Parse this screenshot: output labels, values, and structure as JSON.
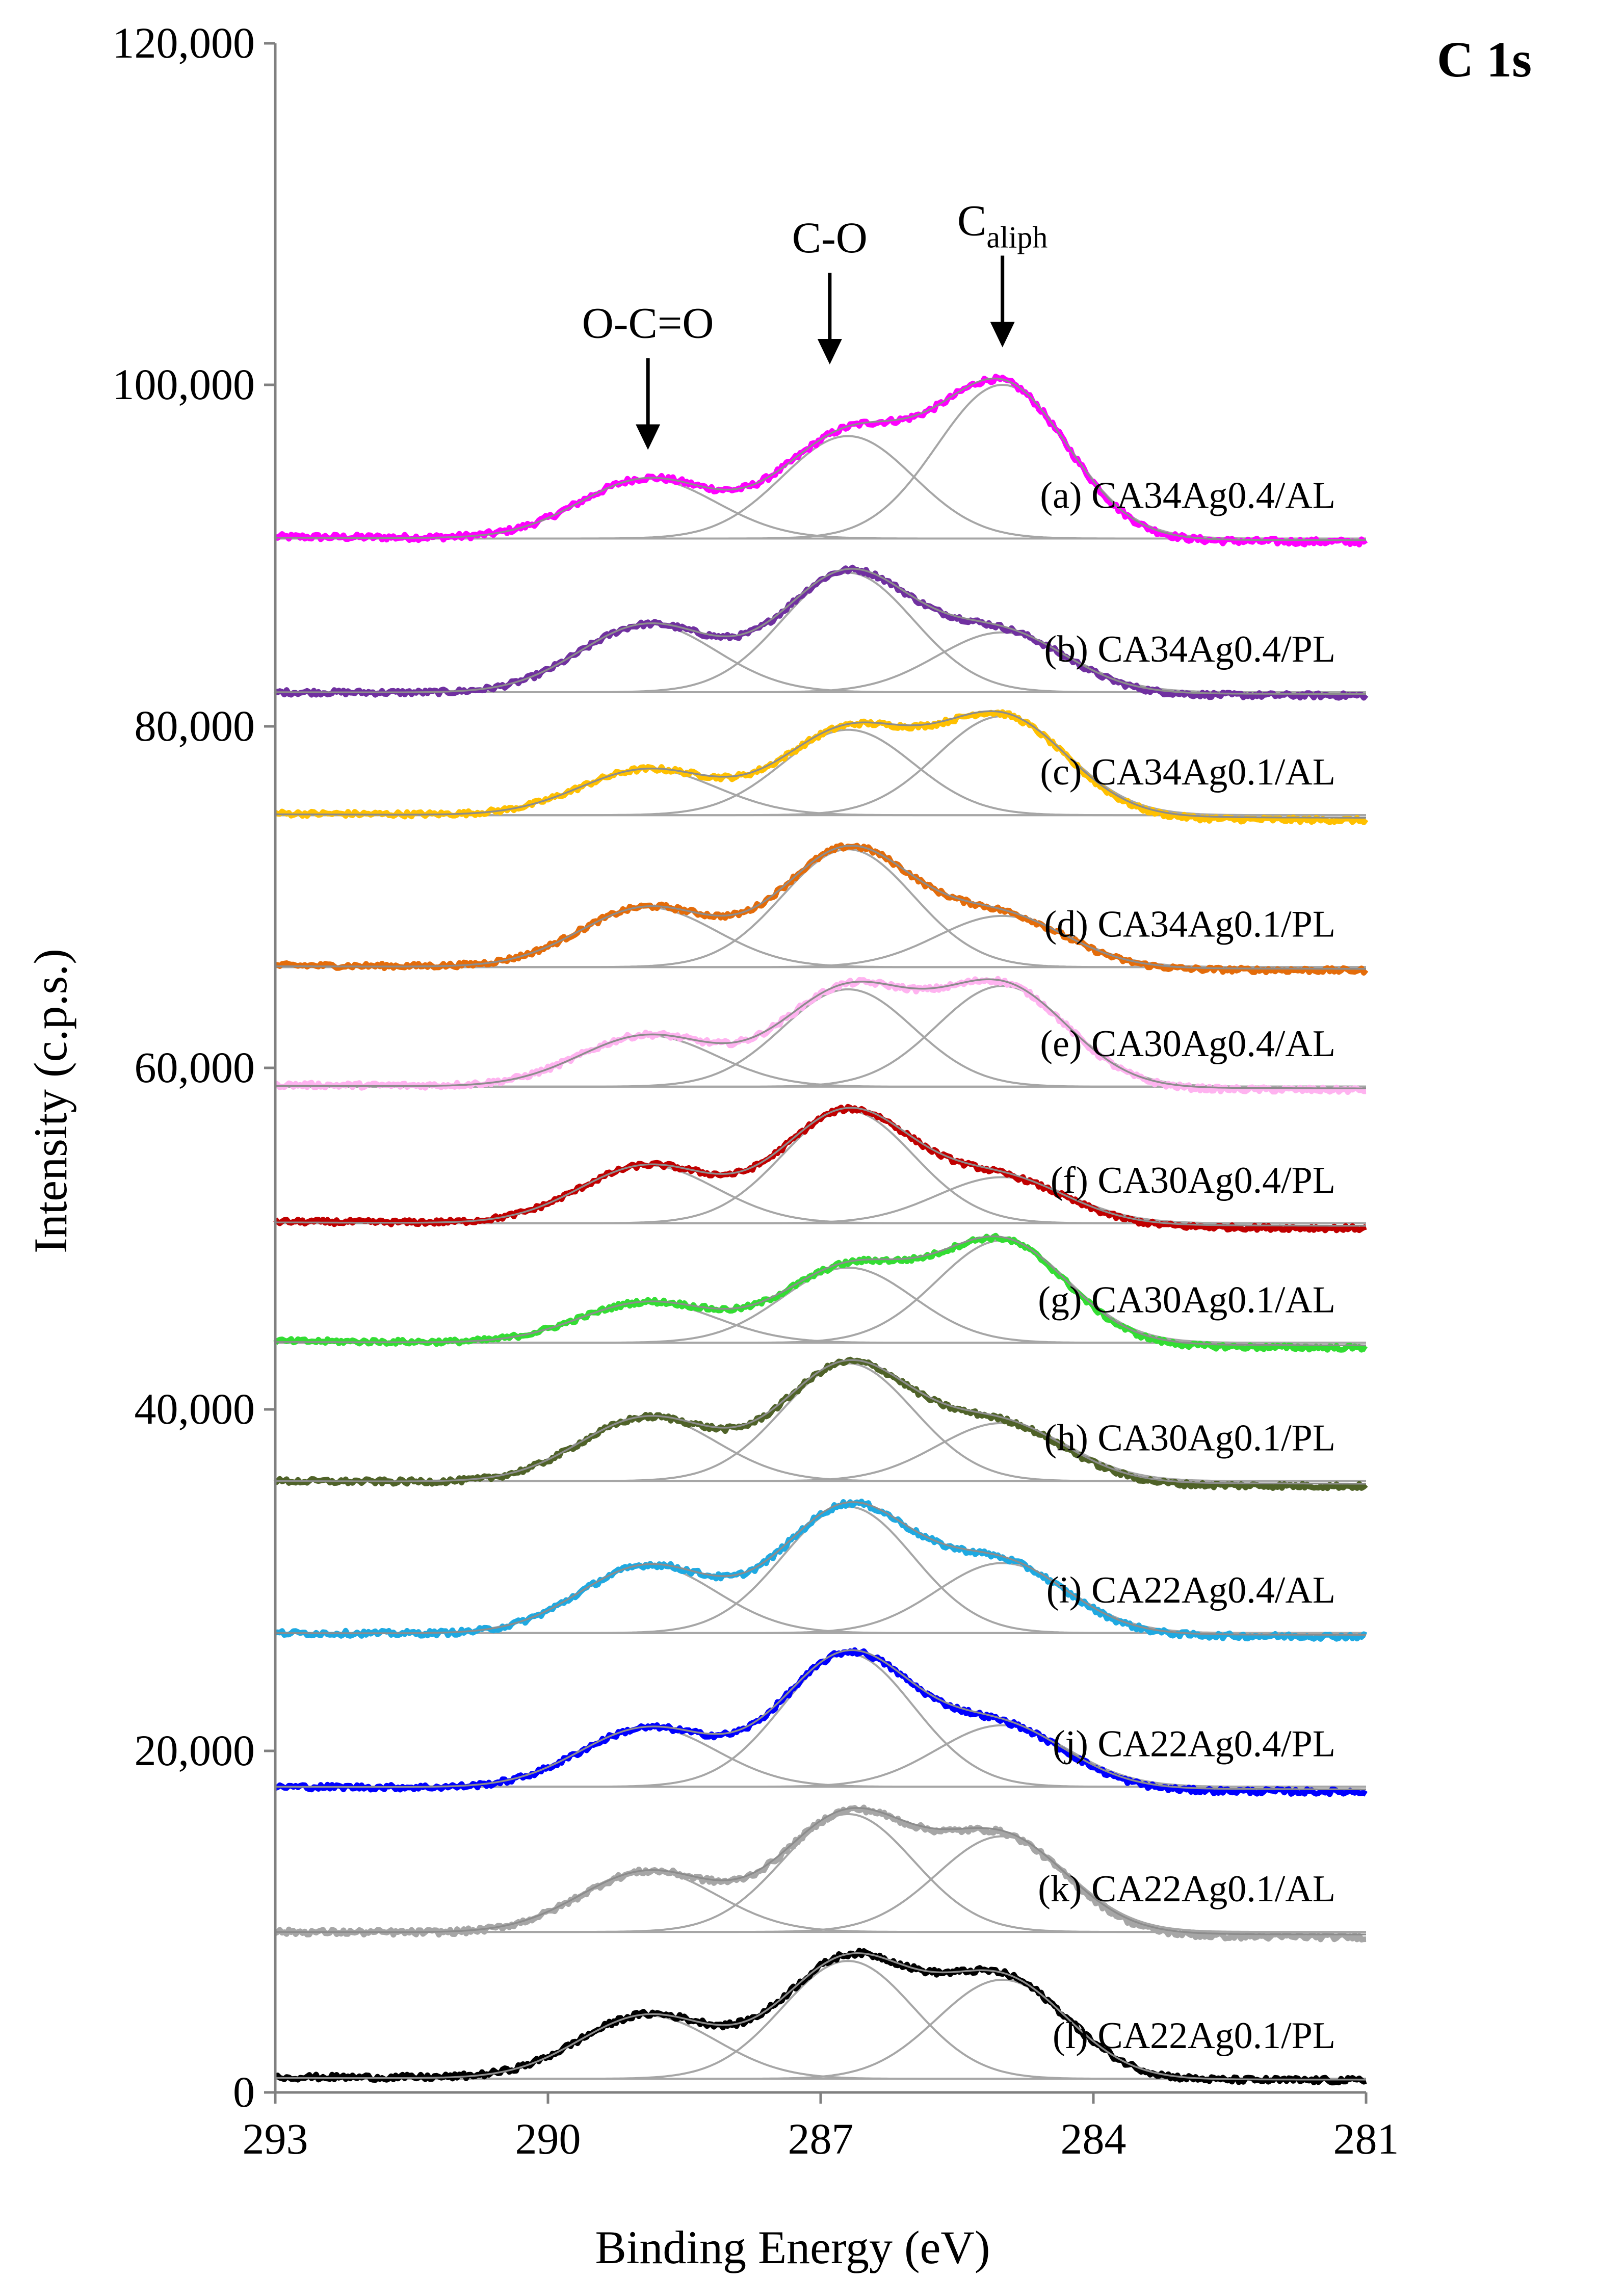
{
  "chart_data": {
    "type": "line",
    "title": "C 1s",
    "xlabel": "Binding Energy (eV)",
    "ylabel": "Intensity (c.p.s.)",
    "xlim": [
      293,
      281
    ],
    "ylim": [
      0,
      120000
    ],
    "x_ticks": [
      293,
      290,
      287,
      284,
      281
    ],
    "x_tick_labels": [
      "293",
      "290",
      "287",
      "284",
      "281"
    ],
    "y_ticks": [
      0,
      20000,
      40000,
      60000,
      80000,
      100000,
      120000
    ],
    "y_tick_labels": [
      "0",
      "20,000",
      "40,000",
      "60,000",
      "80,000",
      "100,000",
      "120,000"
    ],
    "grid": false,
    "peak_positions_eV": {
      "O-C=O": 288.9,
      "C-O": 286.7,
      "C_aliph": 285.0
    },
    "peak_widths_eV": {
      "O-C=O": 0.75,
      "C-O": 0.72,
      "C_aliph": 0.72
    },
    "annotations": [
      {
        "text": "O-C=O",
        "x": 288.9,
        "arrow_tip_y": 95000
      },
      {
        "text": "C-O",
        "x": 286.9,
        "arrow_tip_y": 100000
      },
      {
        "text": "C",
        "subscript": "aliph",
        "x": 285.0,
        "arrow_tip_y": 101000
      }
    ],
    "series": [
      {
        "name": "(a) CA34Ag0.4/AL",
        "color": "#ff00ff",
        "baseline": 91000,
        "left_level": 91100,
        "right_level": 90800,
        "amplitudes": [
          3500,
          6000,
          9000
        ]
      },
      {
        "name": "(b) CA34Ag0.4/PL",
        "color": "#7030a0",
        "baseline": 82000,
        "left_level": 82000,
        "right_level": 81800,
        "amplitudes": [
          4000,
          7000,
          3500
        ]
      },
      {
        "name": "(c) CA34Ag0.1/AL",
        "color": "#ffc000",
        "baseline": 74800,
        "left_level": 74900,
        "right_level": 74500,
        "amplitudes": [
          2700,
          5000,
          5800
        ]
      },
      {
        "name": "(d) CA34Ag0.1/PL",
        "color": "#e46c0a",
        "baseline": 65900,
        "left_level": 66000,
        "right_level": 65700,
        "amplitudes": [
          3500,
          6900,
          3000
        ]
      },
      {
        "name": "(e) CA30Ag0.4/AL",
        "color": "#ffb3f0",
        "baseline": 58900,
        "left_level": 59000,
        "right_level": 58700,
        "amplitudes": [
          3000,
          5700,
          5900
        ]
      },
      {
        "name": "(f) CA30Ag0.4/PL",
        "color": "#c00000",
        "baseline": 50900,
        "left_level": 51000,
        "right_level": 50600,
        "amplitudes": [
          3400,
          6600,
          2700
        ]
      },
      {
        "name": "(g) CA30Ag0.1/AL",
        "color": "#33dd33",
        "baseline": 43900,
        "left_level": 44000,
        "right_level": 43600,
        "amplitudes": [
          2400,
          4400,
          6000
        ]
      },
      {
        "name": "(h) CA30Ag0.1/PL",
        "color": "#4f6228",
        "baseline": 35800,
        "left_level": 35800,
        "right_level": 35500,
        "amplitudes": [
          3800,
          6900,
          3400
        ]
      },
      {
        "name": "(i) CA22Ag0.4/AL",
        "color": "#1fa9e1",
        "baseline": 26900,
        "left_level": 26900,
        "right_level": 26700,
        "amplitudes": [
          4000,
          7400,
          4100
        ]
      },
      {
        "name": "(j) CA22Ag0.4/PL",
        "color": "#0000ff",
        "baseline": 17900,
        "left_level": 17900,
        "right_level": 17600,
        "amplitudes": [
          3500,
          7800,
          3600
        ]
      },
      {
        "name": "(k) CA22Ag0.1/AL",
        "color": "#a6a6a6",
        "baseline": 9400,
        "left_level": 9400,
        "right_level": 9100,
        "amplitudes": [
          3600,
          6900,
          5600
        ]
      },
      {
        "name": "(l) CA22Ag0.1/PL",
        "color": "#000000",
        "baseline": 800,
        "left_level": 900,
        "right_level": 700,
        "amplitudes": [
          3700,
          6900,
          5800
        ]
      }
    ]
  }
}
